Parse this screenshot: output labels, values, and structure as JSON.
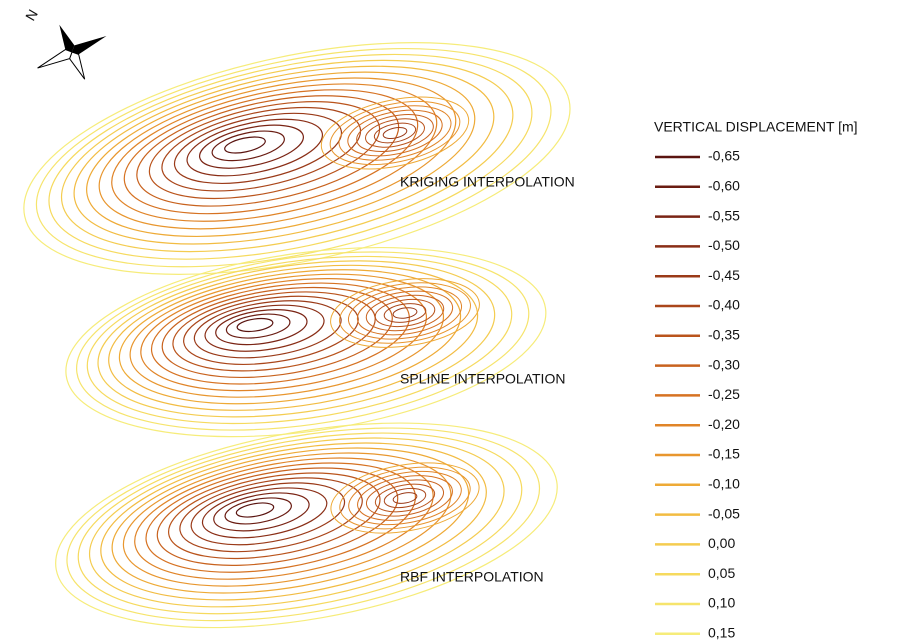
{
  "compass_label": "N",
  "panels": [
    {
      "label": "KRIGING INTERPOLATION"
    },
    {
      "label": "SPLINE INTERPOLATION"
    },
    {
      "label": "RBF INTERPOLATION"
    }
  ],
  "legend": {
    "title": "VERTICAL DISPLACEMENT [m]",
    "items": [
      {
        "label": "-0,65",
        "color": "#5a1410"
      },
      {
        "label": "-0,60",
        "color": "#6a1c12"
      },
      {
        "label": "-0,55",
        "color": "#7a2414"
      },
      {
        "label": "-0,50",
        "color": "#8a2e16"
      },
      {
        "label": "-0,45",
        "color": "#9a3a18"
      },
      {
        "label": "-0,40",
        "color": "#aa461a"
      },
      {
        "label": "-0,35",
        "color": "#ba541c"
      },
      {
        "label": "-0,30",
        "color": "#c8621e"
      },
      {
        "label": "-0,25",
        "color": "#d67222"
      },
      {
        "label": "-0,20",
        "color": "#e08428"
      },
      {
        "label": "-0,15",
        "color": "#e8962e"
      },
      {
        "label": "-0,10",
        "color": "#eeaa36"
      },
      {
        "label": "-0,05",
        "color": "#f2bc42"
      },
      {
        "label": "0,00",
        "color": "#f4cc50"
      },
      {
        "label": "0,05",
        "color": "#f6da5e"
      },
      {
        "label": "0,10",
        "color": "#f6e46c"
      },
      {
        "label": "0,15",
        "color": "#f6ec7a"
      }
    ]
  }
}
